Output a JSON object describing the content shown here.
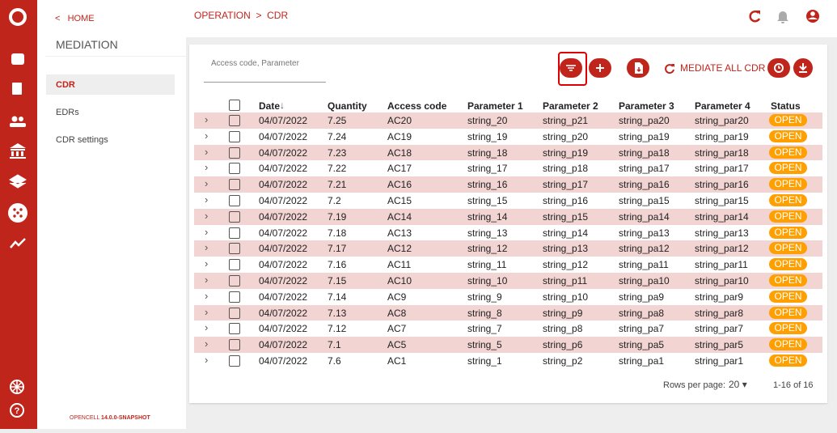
{
  "sidebar": {
    "home": "HOME",
    "section": "MEDIATION",
    "menu": [
      "CDR",
      "EDRs",
      "CDR settings"
    ],
    "brand": "OPENCELL",
    "version": "14.0.0-SNAPSHOT"
  },
  "breadcrumb": [
    "OPERATION",
    "CDR"
  ],
  "toolbar": {
    "search_placeholder": "Access code, Parameter",
    "mediate_button": "MEDIATE ALL CDR"
  },
  "table": {
    "columns": [
      "Date",
      "Quantity",
      "Access code",
      "Parameter 1",
      "Parameter 2",
      "Parameter 3",
      "Parameter 4",
      "Status"
    ],
    "rows": [
      [
        "04/07/2022",
        "7.25",
        "AC20",
        "string_20",
        "string_p21",
        "string_pa20",
        "string_par20",
        "OPEN"
      ],
      [
        "04/07/2022",
        "7.24",
        "AC19",
        "string_19",
        "string_p20",
        "string_pa19",
        "string_par19",
        "OPEN"
      ],
      [
        "04/07/2022",
        "7.23",
        "AC18",
        "string_18",
        "string_p19",
        "string_pa18",
        "string_par18",
        "OPEN"
      ],
      [
        "04/07/2022",
        "7.22",
        "AC17",
        "string_17",
        "string_p18",
        "string_pa17",
        "string_par17",
        "OPEN"
      ],
      [
        "04/07/2022",
        "7.21",
        "AC16",
        "string_16",
        "string_p17",
        "string_pa16",
        "string_par16",
        "OPEN"
      ],
      [
        "04/07/2022",
        "7.2",
        "AC15",
        "string_15",
        "string_p16",
        "string_pa15",
        "string_par15",
        "OPEN"
      ],
      [
        "04/07/2022",
        "7.19",
        "AC14",
        "string_14",
        "string_p15",
        "string_pa14",
        "string_par14",
        "OPEN"
      ],
      [
        "04/07/2022",
        "7.18",
        "AC13",
        "string_13",
        "string_p14",
        "string_pa13",
        "string_par13",
        "OPEN"
      ],
      [
        "04/07/2022",
        "7.17",
        "AC12",
        "string_12",
        "string_p13",
        "string_pa12",
        "string_par12",
        "OPEN"
      ],
      [
        "04/07/2022",
        "7.16",
        "AC11",
        "string_11",
        "string_p12",
        "string_pa11",
        "string_par11",
        "OPEN"
      ],
      [
        "04/07/2022",
        "7.15",
        "AC10",
        "string_10",
        "string_p11",
        "string_pa10",
        "string_par10",
        "OPEN"
      ],
      [
        "04/07/2022",
        "7.14",
        "AC9",
        "string_9",
        "string_p10",
        "string_pa9",
        "string_par9",
        "OPEN"
      ],
      [
        "04/07/2022",
        "7.13",
        "AC8",
        "string_8",
        "string_p9",
        "string_pa8",
        "string_par8",
        "OPEN"
      ],
      [
        "04/07/2022",
        "7.12",
        "AC7",
        "string_7",
        "string_p8",
        "string_pa7",
        "string_par7",
        "OPEN"
      ],
      [
        "04/07/2022",
        "7.1",
        "AC5",
        "string_5",
        "string_p6",
        "string_pa5",
        "string_par5",
        "OPEN"
      ],
      [
        "04/07/2022",
        "7.6",
        "AC1",
        "string_1",
        "string_p2",
        "string_pa1",
        "string_par1",
        "OPEN"
      ]
    ]
  },
  "pagination": {
    "rows_per_page_label": "Rows per page:",
    "rows_per_page": "20",
    "range": "1-16 of 16"
  }
}
